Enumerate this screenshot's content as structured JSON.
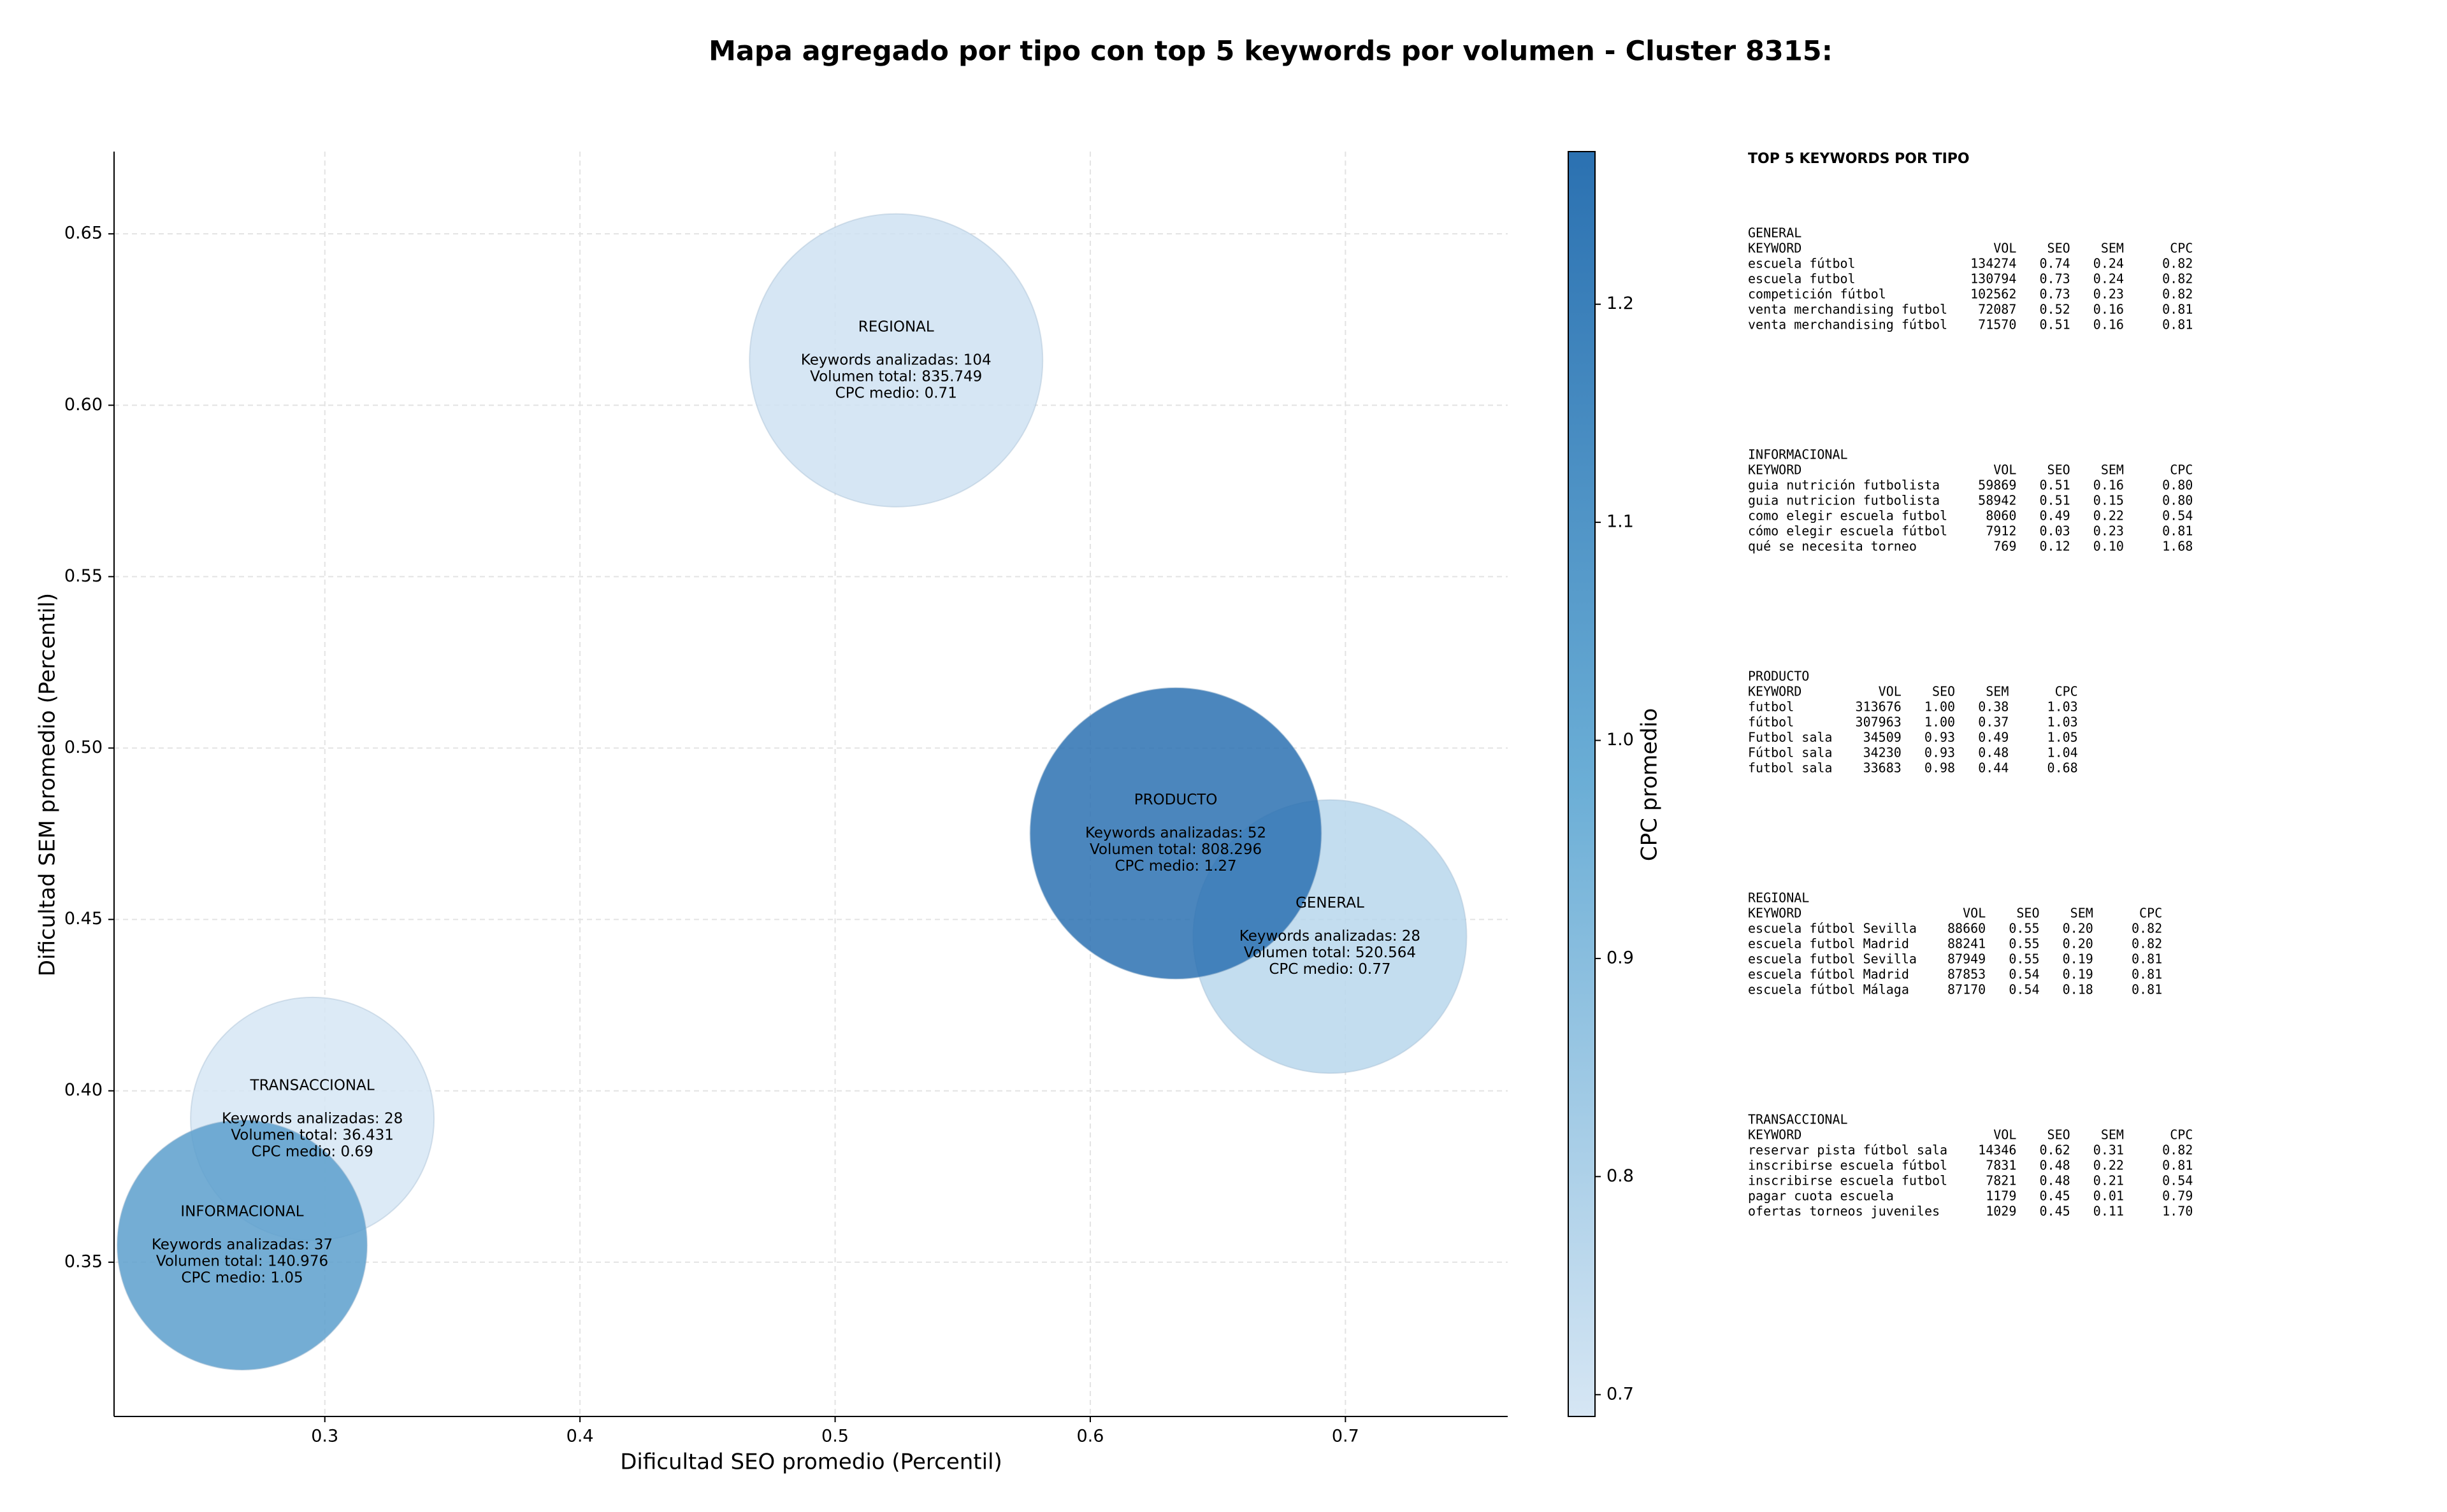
{
  "chart_data": {
    "type": "bubble",
    "title": "Mapa agregado por tipo con top 5 keywords por volumen - Cluster 8315:",
    "xlabel": "Dificultad SEO promedio (Percentil)",
    "ylabel": "Dificultad SEM promedio (Percentil)",
    "x": [
      0.5239,
      0.6939,
      0.6335,
      0.2951,
      0.2676
    ],
    "y": [
      0.6131,
      0.445,
      0.4751,
      0.3918,
      0.355
    ],
    "sizes": [
      835749,
      520564,
      808296,
      36431,
      140976
    ],
    "cpc": [
      0.71,
      0.77,
      1.27,
      0.69,
      1.05
    ],
    "labels": [
      [
        "REGIONAL",
        "Keywords analizadas: 104",
        "Volumen total: 835.749",
        "CPC medio: 0.71"
      ],
      [
        "GENERAL",
        "Keywords analizadas: 28",
        "Volumen total: 520.564",
        "CPC medio: 0.77"
      ],
      [
        "PRODUCTO",
        "Keywords analizadas: 52",
        "Volumen total: 808.296",
        "CPC medio: 1.27"
      ],
      [
        "TRANSACCIONAL",
        "Keywords analizadas: 28",
        "Volumen total: 36.431",
        "CPC medio: 0.69"
      ],
      [
        "INFORMACIONAL",
        "Keywords analizadas: 37",
        "Volumen total: 140.976",
        "CPC medio: 1.05"
      ]
    ],
    "xlim": [
      0.2174,
      0.7636
    ],
    "ylim": [
      0.305,
      0.674
    ],
    "xticks": [
      0.3,
      0.4,
      0.5,
      0.6,
      0.7
    ],
    "yticks": [
      0.35,
      {
        "value": 0.4,
        "label": "0.40"
      },
      0.45,
      {
        "value": 0.5,
        "label": "0.50"
      },
      0.55,
      {
        "value": 0.6,
        "label": "0.60"
      },
      0.65
    ],
    "grid": true,
    "colorbar": {
      "label": "CPC promedio",
      "clim": [
        0.69,
        1.27
      ],
      "ticks": [
        0.7,
        0.8,
        0.9,
        {
          "value": 1.0,
          "label": "1.0"
        },
        1.1,
        1.2
      ],
      "colors": [
        "#d6e6f4",
        "#6baed6",
        "#2b71b1"
      ]
    }
  },
  "keywords_panel": {
    "title": "TOP 5 KEYWORDS POR TIPO",
    "tables": [
      {
        "title": "GENERAL",
        "columns": [
          "KEYWORD",
          "VOL",
          "SEO",
          "SEM",
          "CPC"
        ],
        "rows": [
          [
            "escuela fútbol",
            "134274",
            "0.74",
            "0.24",
            "0.82"
          ],
          [
            "escuela futbol",
            "130794",
            "0.73",
            "0.24",
            "0.82"
          ],
          [
            "competición fútbol",
            "102562",
            "0.73",
            "0.23",
            "0.82"
          ],
          [
            "venta merchandising futbol",
            "72087",
            "0.52",
            "0.16",
            "0.81"
          ],
          [
            "venta merchandising fútbol",
            "71570",
            "0.51",
            "0.16",
            "0.81"
          ]
        ]
      },
      {
        "title": "INFORMACIONAL",
        "columns": [
          "KEYWORD",
          "VOL",
          "SEO",
          "SEM",
          "CPC"
        ],
        "rows": [
          [
            "guia nutrición futbolista",
            "59869",
            "0.51",
            "0.16",
            "0.80"
          ],
          [
            "guia nutricion futbolista",
            "58942",
            "0.51",
            "0.15",
            "0.80"
          ],
          [
            "como elegir escuela futbol",
            "8060",
            "0.49",
            "0.22",
            "0.54"
          ],
          [
            "cómo elegir escuela fútbol",
            "7912",
            "0.03",
            "0.23",
            "0.81"
          ],
          [
            "qué se necesita torneo",
            "769",
            "0.12",
            "0.10",
            "1.68"
          ]
        ]
      },
      {
        "title": "PRODUCTO",
        "columns": [
          "KEYWORD",
          "VOL",
          "SEO",
          "SEM",
          "CPC"
        ],
        "rows": [
          [
            "futbol",
            "313676",
            "1.00",
            "0.38",
            "1.03"
          ],
          [
            "fútbol",
            "307963",
            "1.00",
            "0.37",
            "1.03"
          ],
          [
            "Futbol sala",
            "34509",
            "0.93",
            "0.49",
            "1.05"
          ],
          [
            "Fútbol sala",
            "34230",
            "0.93",
            "0.48",
            "1.04"
          ],
          [
            "futbol sala",
            "33683",
            "0.98",
            "0.44",
            "0.68"
          ]
        ]
      },
      {
        "title": "REGIONAL",
        "columns": [
          "KEYWORD",
          "VOL",
          "SEO",
          "SEM",
          "CPC"
        ],
        "rows": [
          [
            "escuela fútbol Sevilla",
            "88660",
            "0.55",
            "0.20",
            "0.82"
          ],
          [
            "escuela futbol Madrid",
            "88241",
            "0.55",
            "0.20",
            "0.82"
          ],
          [
            "escuela futbol Sevilla",
            "87949",
            "0.55",
            "0.19",
            "0.81"
          ],
          [
            "escuela fútbol Madrid",
            "87853",
            "0.54",
            "0.19",
            "0.81"
          ],
          [
            "escuela fútbol Málaga",
            "87170",
            "0.54",
            "0.18",
            "0.81"
          ]
        ]
      },
      {
        "title": "TRANSACCIONAL",
        "columns": [
          "KEYWORD",
          "VOL",
          "SEO",
          "SEM",
          "CPC"
        ],
        "rows": [
          [
            "reservar pista fútbol sala",
            "14346",
            "0.62",
            "0.31",
            "0.82"
          ],
          [
            "inscribirse escuela fútbol",
            "7831",
            "0.48",
            "0.22",
            "0.81"
          ],
          [
            "inscribirse escuela futbol",
            "7821",
            "0.48",
            "0.21",
            "0.54"
          ],
          [
            "pagar cuota escuela",
            "1179",
            "0.45",
            "0.01",
            "0.79"
          ],
          [
            "ofertas torneos juveniles",
            "1029",
            "0.45",
            "0.11",
            "1.70"
          ]
        ]
      }
    ]
  }
}
